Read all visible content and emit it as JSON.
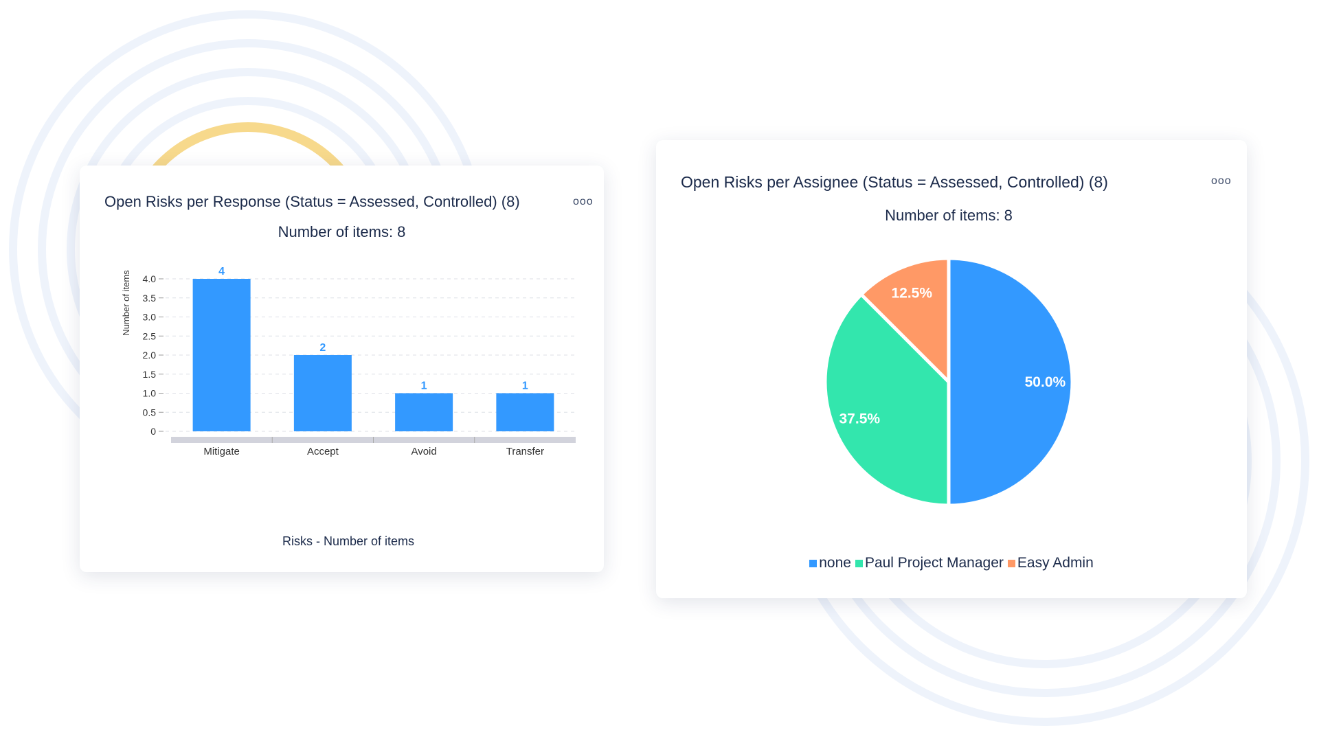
{
  "colors": {
    "bar": "#3399ff",
    "bg_ring": "#eef3fb",
    "accent_ring": "#f7d98c"
  },
  "bar_card": {
    "title": "Open Risks per Response (Status = Assessed, Controlled) (8)",
    "menu_icon": "more-horizontal-icon",
    "menu_label": "ooo",
    "subtitle": "Number of items: 8",
    "footer": "Risks - Number of items"
  },
  "pie_card": {
    "title": "Open Risks per Assignee (Status = Assessed, Controlled) (8)",
    "menu_icon": "more-horizontal-icon",
    "menu_label": "ooo",
    "subtitle": "Number of items: 8"
  },
  "chart_data": [
    {
      "type": "bar",
      "title": "Open Risks per Response (Status = Assessed, Controlled) (8)",
      "subtitle": "Number of items: 8",
      "categories": [
        "Mitigate",
        "Accept",
        "Avoid",
        "Transfer"
      ],
      "values": [
        4,
        2,
        1,
        1
      ],
      "data_labels": [
        "4",
        "2",
        "1",
        "1"
      ],
      "xlabel": "Risks - Number of items",
      "ylabel": "Number of items",
      "ylim": [
        0,
        4
      ],
      "yticks": [
        "0",
        "0.5",
        "1.0",
        "1.5",
        "2.0",
        "2.5",
        "3.0",
        "3.5",
        "4.0"
      ],
      "grid": true,
      "color": "#3399ff"
    },
    {
      "type": "pie",
      "title": "Open Risks per Assignee (Status = Assessed, Controlled) (8)",
      "subtitle": "Number of items: 8",
      "slices": [
        {
          "name": "none",
          "value": 4,
          "label": "50.0%",
          "color": "#3399ff"
        },
        {
          "name": "Paul Project Manager",
          "value": 3,
          "label": "37.5%",
          "color": "#33e6ad"
        },
        {
          "name": "Easy Admin",
          "value": 1,
          "label": "12.5%",
          "color": "#ff9966"
        }
      ],
      "legend": "bottom"
    }
  ]
}
